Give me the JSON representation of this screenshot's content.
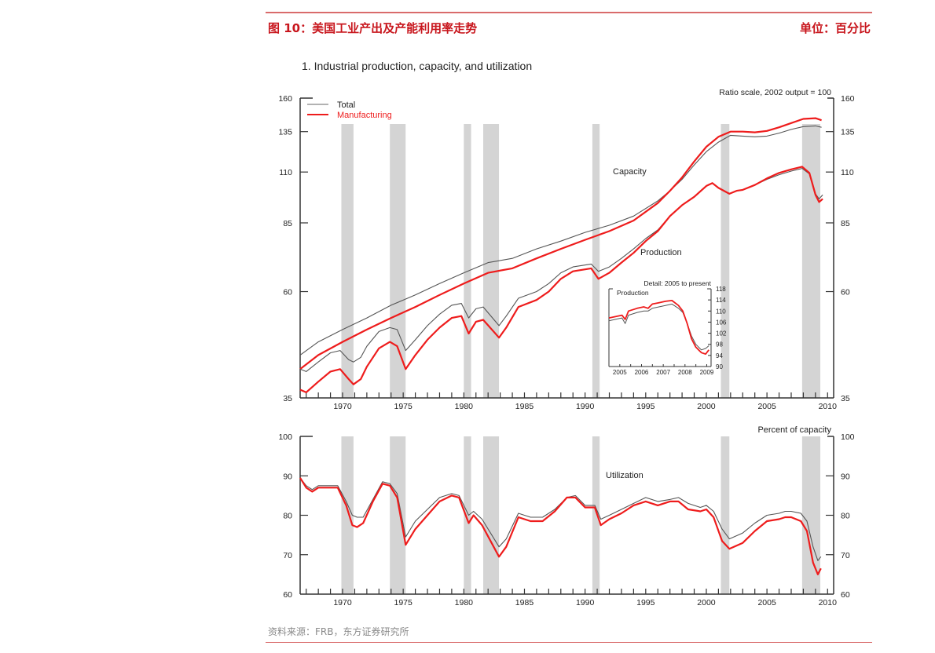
{
  "header": {
    "figure_title": "图 10：美国工业产出及产能利用率走势",
    "unit_label": "单位：百分比"
  },
  "footer": {
    "source": "资料来源：FRB，东方证券研究所"
  },
  "colors": {
    "header_red": "#c8161d",
    "total": "#555555",
    "manufacturing": "#ee1c1c",
    "recession": "#d4d4d4"
  },
  "chart_data": [
    {
      "type": "line",
      "title": "1.  Industrial production, capacity, and utilization",
      "subtitle": "Ratio scale, 2002 output = 100",
      "yscale": "log",
      "ylim": [
        35,
        160
      ],
      "yticks": [
        35,
        60,
        85,
        110,
        135,
        160
      ],
      "xlim": [
        1966.5,
        2010.5
      ],
      "xticks": [
        1970,
        1975,
        1980,
        1985,
        1990,
        1995,
        2000,
        2005,
        2010
      ],
      "legend": {
        "placement": "top-left",
        "entries": [
          "Total",
          "Manufacturing"
        ]
      },
      "annotations": [
        "Capacity",
        "Production"
      ],
      "recessions": [
        [
          1969.9,
          1970.9
        ],
        [
          1973.9,
          1975.2
        ],
        [
          1980.0,
          1980.6
        ],
        [
          1981.6,
          1982.9
        ],
        [
          1990.6,
          1991.2
        ],
        [
          2001.2,
          2001.9
        ],
        [
          2007.9,
          2009.4
        ]
      ],
      "series": [
        {
          "name": "Total",
          "group": "Capacity",
          "x": [
            1966.5,
            1968,
            1970,
            1972,
            1974,
            1976,
            1978,
            1980,
            1982,
            1984,
            1986,
            1988,
            1990,
            1992,
            1994,
            1996,
            1997,
            1998,
            1999,
            2000,
            2001,
            2002,
            2003,
            2004,
            2005,
            2006,
            2007,
            2008,
            2009,
            2009.5
          ],
          "y": [
            43.5,
            46.5,
            49.5,
            52.5,
            56,
            59,
            62.5,
            66,
            69.5,
            71,
            74.5,
            77.5,
            81,
            84,
            88,
            95,
            100,
            106,
            114,
            122,
            128,
            132.5,
            132,
            131.5,
            132,
            134,
            136.5,
            138.5,
            139,
            138
          ]
        },
        {
          "name": "Manufacturing",
          "group": "Capacity",
          "x": [
            1966.5,
            1968,
            1970,
            1972,
            1974,
            1976,
            1978,
            1980,
            1982,
            1984,
            1986,
            1988,
            1990,
            1992,
            1994,
            1996,
            1997,
            1998,
            1999,
            2000,
            2001,
            2002,
            2003,
            2004,
            2005,
            2006,
            2007,
            2008,
            2009,
            2009.5
          ],
          "y": [
            40.5,
            43.5,
            46.5,
            49.5,
            52.5,
            55.5,
            59,
            62.5,
            66,
            67.5,
            71,
            74.5,
            78,
            81.5,
            86,
            94,
            100,
            107,
            116,
            125,
            131.5,
            135,
            135,
            134.5,
            135.5,
            138,
            141,
            144,
            144.5,
            143
          ]
        },
        {
          "name": "Total",
          "group": "Production",
          "x": [
            1966.5,
            1967,
            1968,
            1969,
            1969.8,
            1970.5,
            1970.9,
            1971.5,
            1972,
            1973,
            1973.9,
            1974.5,
            1975.2,
            1976,
            1977,
            1978,
            1979,
            1979.8,
            1980.4,
            1981,
            1981.6,
            1982.9,
            1983.5,
            1984.5,
            1986,
            1987,
            1988,
            1989,
            1990.5,
            1991.1,
            1992,
            1993,
            1994,
            1995,
            1996,
            1997,
            1998,
            1999,
            2000,
            2000.5,
            2001,
            2001.9,
            2002.5,
            2003,
            2004,
            2005,
            2006,
            2007,
            2007.9,
            2008.5,
            2009,
            2009.3,
            2009.6
          ],
          "y": [
            40.5,
            40,
            42,
            44,
            44.5,
            42.5,
            42,
            43,
            45.5,
            49,
            50,
            49.5,
            44.5,
            47,
            50.5,
            53.5,
            56,
            56.5,
            52.5,
            55,
            55.5,
            50.5,
            53,
            58,
            60,
            62.5,
            66,
            68,
            69,
            66.5,
            68,
            71,
            74.5,
            78.5,
            82,
            88,
            93,
            97,
            102.5,
            104,
            101.5,
            98.5,
            100,
            100.5,
            103,
            106,
            108.5,
            110.5,
            112,
            109,
            98.5,
            96,
            98
          ]
        },
        {
          "name": "Manufacturing",
          "group": "Production",
          "x": [
            1966.5,
            1967,
            1968,
            1969,
            1969.8,
            1970.5,
            1970.9,
            1971.5,
            1972,
            1973,
            1973.9,
            1974.5,
            1975.2,
            1976,
            1977,
            1978,
            1979,
            1979.8,
            1980.4,
            1981,
            1981.6,
            1982.9,
            1983.5,
            1984.5,
            1986,
            1987,
            1988,
            1989,
            1990.5,
            1991.1,
            1992,
            1993,
            1994,
            1995,
            1996,
            1997,
            1998,
            1999,
            2000,
            2000.5,
            2001,
            2001.9,
            2002.5,
            2003,
            2004,
            2005,
            2006,
            2007,
            2007.9,
            2008.5,
            2009,
            2009.3,
            2009.6
          ],
          "y": [
            36.5,
            36,
            38,
            40,
            40.5,
            38.5,
            37.5,
            38.5,
            41,
            45,
            46.5,
            45.5,
            40.5,
            43.5,
            47,
            50,
            52.5,
            53,
            48.5,
            51.5,
            52,
            47.5,
            50,
            55.5,
            57.5,
            60,
            64,
            66.5,
            67.5,
            64,
            66,
            69.5,
            73,
            77.5,
            81.5,
            88,
            93,
            97,
            102.5,
            104,
            101.5,
            98.5,
            100,
            100.5,
            103,
            106.5,
            109.5,
            111.5,
            113,
            109.5,
            98,
            94.5,
            96
          ]
        }
      ]
    },
    {
      "type": "line",
      "title": "Detail: 2005 to present",
      "label": "Production",
      "ylim": [
        90,
        118
      ],
      "yticks": [
        90,
        94,
        98,
        102,
        106,
        110,
        114,
        118
      ],
      "xlim": [
        2005,
        2009.7
      ],
      "xticks": [
        "2005",
        "2006",
        "2007",
        "2008",
        "2009"
      ],
      "series": [
        {
          "name": "Total",
          "x": [
            2005,
            2005.3,
            2005.6,
            2005.75,
            2005.9,
            2006.3,
            2006.6,
            2006.8,
            2007,
            2007.3,
            2007.6,
            2007.9,
            2008.2,
            2008.4,
            2008.6,
            2008.8,
            2009,
            2009.25,
            2009.45,
            2009.6
          ],
          "y": [
            106.5,
            107,
            107.5,
            105.5,
            108.5,
            109.5,
            110,
            110,
            111,
            111.5,
            112,
            112.5,
            111,
            109.5,
            105.5,
            101,
            98,
            96,
            96.5,
            97.5
          ]
        },
        {
          "name": "Manufacturing",
          "x": [
            2005,
            2005.3,
            2005.6,
            2005.75,
            2005.9,
            2006.3,
            2006.6,
            2006.8,
            2007,
            2007.3,
            2007.6,
            2007.9,
            2008.2,
            2008.4,
            2008.6,
            2008.8,
            2009,
            2009.25,
            2009.45,
            2009.6
          ],
          "y": [
            107.5,
            108,
            108.5,
            107,
            110,
            111,
            111.5,
            111,
            112.5,
            113,
            113.5,
            113.8,
            112,
            110,
            105.5,
            100,
            97,
            95,
            94.5,
            96
          ]
        }
      ]
    },
    {
      "type": "line",
      "title": "Percent of capacity",
      "annotation": "Utilization",
      "ylim": [
        60,
        100
      ],
      "yticks": [
        60,
        70,
        80,
        90,
        100
      ],
      "xlim": [
        1966.5,
        2010.5
      ],
      "xticks": [
        1970,
        1975,
        1980,
        1985,
        1990,
        1995,
        2000,
        2005,
        2010
      ],
      "recessions": [
        [
          1969.9,
          1970.9
        ],
        [
          1973.9,
          1975.2
        ],
        [
          1980.0,
          1980.6
        ],
        [
          1981.6,
          1982.9
        ],
        [
          1990.6,
          1991.2
        ],
        [
          2001.2,
          2001.9
        ],
        [
          2007.9,
          2009.4
        ]
      ],
      "series": [
        {
          "name": "Total",
          "x": [
            1966.5,
            1967,
            1967.5,
            1968,
            1969,
            1969.6,
            1970.3,
            1970.8,
            1971.2,
            1971.7,
            1972.5,
            1973.3,
            1973.9,
            1974.5,
            1975.2,
            1976,
            1977,
            1978,
            1979,
            1979.6,
            1980.4,
            1980.8,
            1981.5,
            1982.9,
            1983.5,
            1984.5,
            1985.5,
            1986.5,
            1987.5,
            1988.5,
            1989.2,
            1990,
            1990.8,
            1991.3,
            1992,
            1993,
            1994,
            1995,
            1996,
            1997,
            1997.7,
            1998.5,
            1999.5,
            2000,
            2000.6,
            2001.3,
            2001.9,
            2003,
            2004,
            2005,
            2006,
            2006.5,
            2007,
            2007.8,
            2008.3,
            2008.8,
            2009.2,
            2009.45
          ],
          "y": [
            89.5,
            87.5,
            86.5,
            87.5,
            87.5,
            87.5,
            83.5,
            80,
            79.5,
            79.5,
            84,
            88.5,
            88,
            85.5,
            74.5,
            78.5,
            81.5,
            84.5,
            85.5,
            85,
            80,
            81,
            79,
            72,
            74,
            80.5,
            79.5,
            79.5,
            81.5,
            84.5,
            85,
            82.5,
            82.5,
            79,
            80,
            81.5,
            83,
            84.5,
            83.5,
            84,
            84.5,
            83,
            82,
            82.5,
            81,
            76.5,
            74,
            75.5,
            78,
            80,
            80.5,
            81,
            81,
            80.5,
            78.5,
            72,
            68.5,
            69.5
          ]
        },
        {
          "name": "Manufacturing",
          "x": [
            1966.5,
            1967,
            1967.5,
            1968,
            1969,
            1969.6,
            1970.3,
            1970.8,
            1971.2,
            1971.7,
            1972.5,
            1973.3,
            1973.9,
            1974.5,
            1975.2,
            1976,
            1977,
            1978,
            1979,
            1979.6,
            1980.4,
            1980.8,
            1981.5,
            1982.9,
            1983.5,
            1984.5,
            1985.5,
            1986.5,
            1987.5,
            1988.5,
            1989.2,
            1990,
            1990.8,
            1991.3,
            1992,
            1993,
            1994,
            1995,
            1996,
            1997,
            1997.7,
            1998.5,
            1999.5,
            2000,
            2000.6,
            2001.3,
            2001.9,
            2003,
            2004,
            2005,
            2006,
            2006.5,
            2007,
            2007.8,
            2008.3,
            2008.8,
            2009.2,
            2009.45
          ],
          "y": [
            89.5,
            87,
            86,
            87,
            87,
            87,
            82.5,
            77.5,
            77,
            78,
            83.5,
            88,
            87.5,
            84.5,
            72.5,
            76.5,
            80,
            83.5,
            85,
            84.5,
            78,
            80,
            77.5,
            69.5,
            72,
            79.5,
            78.5,
            78.5,
            81,
            84.5,
            84.5,
            82,
            82,
            77.5,
            79,
            80.5,
            82.5,
            83.5,
            82.5,
            83.5,
            83.5,
            81.5,
            81,
            81.5,
            79.5,
            73.5,
            71.5,
            73,
            76,
            78.5,
            79,
            79.5,
            79.5,
            78.5,
            76,
            68,
            65,
            66.5
          ]
        }
      ]
    }
  ]
}
